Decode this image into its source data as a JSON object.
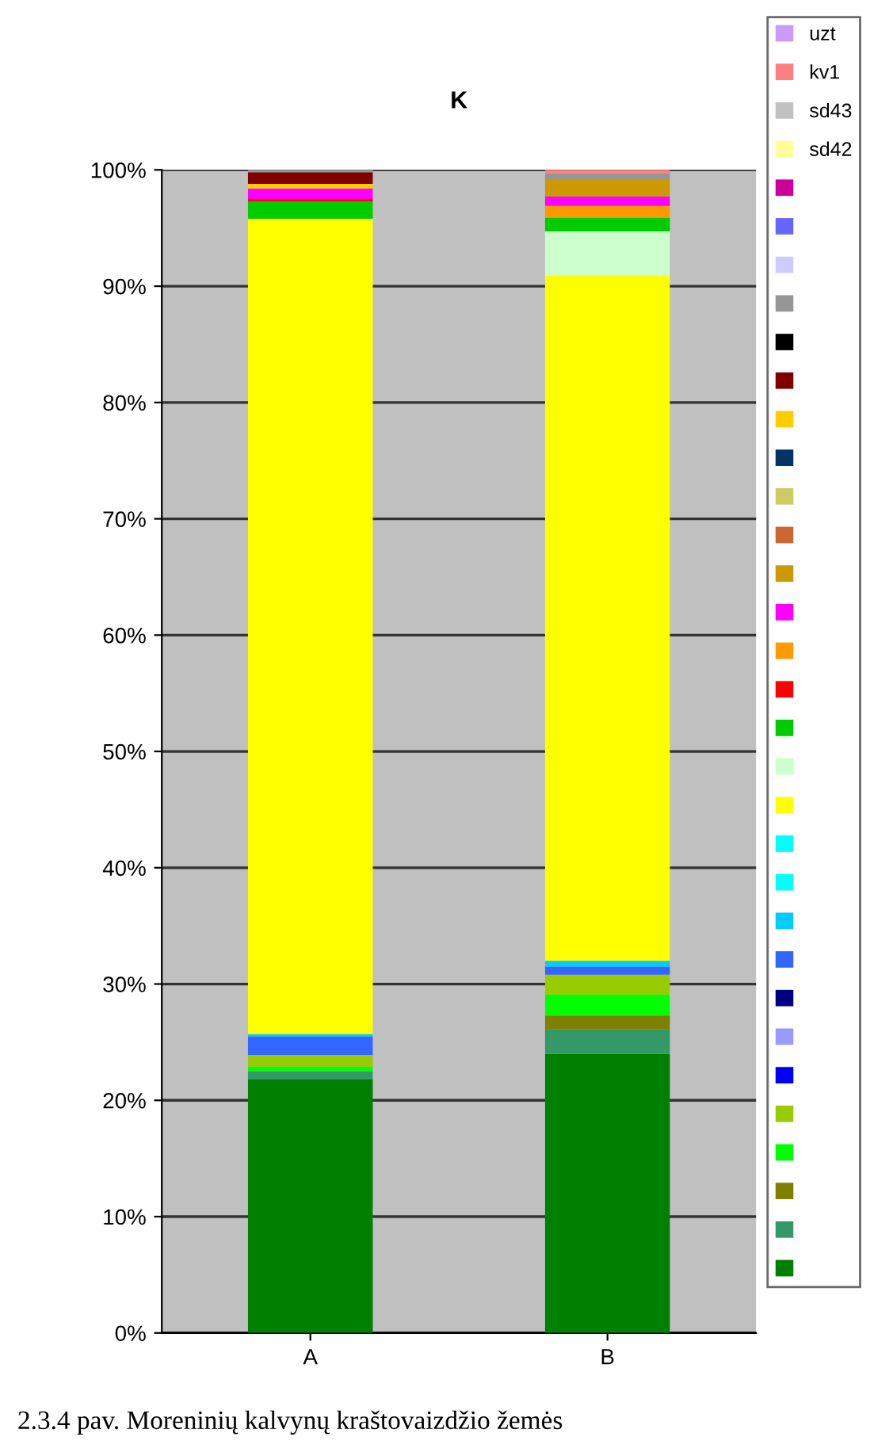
{
  "chart_data": {
    "type": "bar",
    "stacked": true,
    "title": "K",
    "categories": [
      "A",
      "B"
    ],
    "ylim": [
      0,
      100
    ],
    "yticks": [
      {
        "value": 0,
        "label": "0%"
      },
      {
        "value": 10,
        "label": "10%"
      },
      {
        "value": 20,
        "label": "20%"
      },
      {
        "value": 30,
        "label": "30%"
      },
      {
        "value": 40,
        "label": "40%"
      },
      {
        "value": 50,
        "label": "50%"
      },
      {
        "value": 60,
        "label": "60%"
      },
      {
        "value": 70,
        "label": "70%"
      },
      {
        "value": 80,
        "label": "80%"
      },
      {
        "value": 90,
        "label": "90%"
      },
      {
        "value": 100,
        "label": "100%"
      }
    ],
    "grid": "y",
    "legend": "right",
    "series": [
      {
        "color": "#008000",
        "values": [
          21.8,
          24.0
        ]
      },
      {
        "color": "#339966",
        "values": [
          0.7,
          2.1
        ]
      },
      {
        "color": "#808000",
        "values": [
          0,
          1.2
        ]
      },
      {
        "color": "#00ff00",
        "values": [
          0.4,
          1.8
        ]
      },
      {
        "color": "#99cc00",
        "values": [
          1.0,
          1.7
        ]
      },
      {
        "color": "#0000ff",
        "values": [
          0,
          0
        ]
      },
      {
        "color": "#9999ff",
        "values": [
          0,
          0
        ]
      },
      {
        "color": "#000080",
        "values": [
          0,
          0
        ]
      },
      {
        "color": "#3366ff",
        "values": [
          1.6,
          0.7
        ]
      },
      {
        "color": "#00ccff",
        "values": [
          0.2,
          0.5
        ]
      },
      {
        "color": "#00ffff",
        "values": [
          0,
          0
        ]
      },
      {
        "color": "#00ffff",
        "values": [
          0,
          0
        ]
      },
      {
        "color": "#ffff00",
        "values": [
          70.1,
          58.9
        ]
      },
      {
        "color": "#ccffcc",
        "values": [
          0,
          3.8
        ]
      },
      {
        "color": "#00cc00",
        "values": [
          1.5,
          1.2
        ]
      },
      {
        "color": "#ff0000",
        "values": [
          0.2,
          0
        ]
      },
      {
        "color": "#ff9900",
        "values": [
          0,
          1.0
        ]
      },
      {
        "color": "#ff00ff",
        "values": [
          0.9,
          0.8
        ]
      },
      {
        "color": "#cc9900",
        "values": [
          0,
          1.5
        ]
      },
      {
        "color": "#cc6633",
        "values": [
          0,
          0
        ]
      },
      {
        "color": "#cccc66",
        "values": [
          0,
          0
        ]
      },
      {
        "color": "#003366",
        "values": [
          0,
          0
        ]
      },
      {
        "color": "#ffcc00",
        "values": [
          0.4,
          0
        ]
      },
      {
        "color": "#800000",
        "values": [
          1.0,
          0
        ]
      },
      {
        "color": "#000000",
        "values": [
          0,
          0
        ]
      },
      {
        "color": "#969696",
        "values": [
          0.2,
          0.5
        ]
      },
      {
        "color": "#ccccff",
        "values": [
          0,
          0
        ]
      },
      {
        "color": "#6666ff",
        "values": [
          0,
          0
        ]
      },
      {
        "color": "#cc0099",
        "values": [
          0,
          0
        ]
      },
      {
        "name": "sd42",
        "color": "#ffff99",
        "values": [
          0,
          0
        ]
      },
      {
        "name": "sd43",
        "color": "#c0c0c0",
        "values": [
          0,
          0
        ]
      },
      {
        "name": "kv1",
        "color": "#ff8080",
        "values": [
          0,
          0.3
        ]
      },
      {
        "name": "uzt",
        "color": "#cc99ff",
        "values": [
          0,
          0
        ]
      }
    ],
    "annotations": [
      "2.3.4 pav. Moreninių kalvynų kraštovaizdžio žemės"
    ]
  }
}
